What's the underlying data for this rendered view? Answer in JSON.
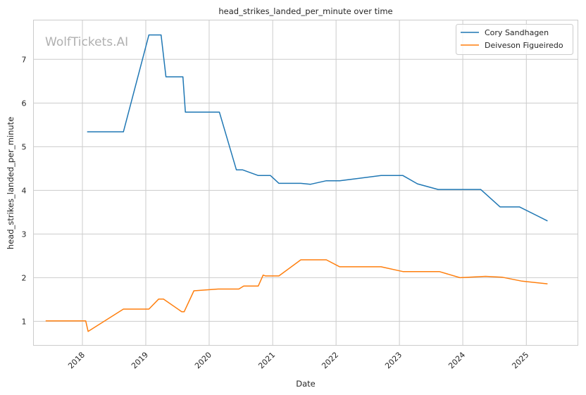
{
  "chart_data": {
    "type": "line",
    "title": "head_strikes_landed_per_minute over time",
    "xlabel": "Date",
    "ylabel": "head_strikes_landed_per_minute",
    "watermark": "WolfTickets.AI",
    "xlim": [
      "2017-03-25",
      "2025-10-25"
    ],
    "ylim": [
      0.45,
      7.9
    ],
    "xticks": [
      {
        "date": "2018-01-01",
        "label": "2018"
      },
      {
        "date": "2019-01-01",
        "label": "2019"
      },
      {
        "date": "2020-01-01",
        "label": "2020"
      },
      {
        "date": "2021-01-01",
        "label": "2021"
      },
      {
        "date": "2022-01-01",
        "label": "2022"
      },
      {
        "date": "2023-01-01",
        "label": "2023"
      },
      {
        "date": "2024-01-01",
        "label": "2024"
      },
      {
        "date": "2025-01-01",
        "label": "2025"
      }
    ],
    "yticks": [
      1,
      2,
      3,
      4,
      5,
      6,
      7
    ],
    "grid": true,
    "legend_position": "top-right",
    "series": [
      {
        "name": "Cory Sandhagen",
        "color": "#1f77b4",
        "points": [
          [
            "2018-01-28",
            5.34
          ],
          [
            "2018-08-25",
            5.34
          ],
          [
            "2019-01-19",
            7.56
          ],
          [
            "2019-03-30",
            7.56
          ],
          [
            "2019-04-27",
            6.6
          ],
          [
            "2019-08-03",
            6.6
          ],
          [
            "2019-08-17",
            5.79
          ],
          [
            "2020-02-29",
            5.79
          ],
          [
            "2020-06-06",
            4.47
          ],
          [
            "2020-07-11",
            4.47
          ],
          [
            "2020-10-10",
            4.34
          ],
          [
            "2020-12-19",
            4.34
          ],
          [
            "2021-02-06",
            4.16
          ],
          [
            "2021-06-12",
            4.16
          ],
          [
            "2021-08-07",
            4.14
          ],
          [
            "2021-11-06",
            4.22
          ],
          [
            "2022-01-22",
            4.22
          ],
          [
            "2022-09-17",
            4.34
          ],
          [
            "2023-01-21",
            4.34
          ],
          [
            "2023-04-15",
            4.15
          ],
          [
            "2023-08-12",
            4.02
          ],
          [
            "2024-04-13",
            4.02
          ],
          [
            "2024-08-03",
            3.62
          ],
          [
            "2024-11-23",
            3.62
          ],
          [
            "2025-05-03",
            3.3
          ]
        ]
      },
      {
        "name": "Deiveson Figueiredo",
        "color": "#ff7f0e",
        "points": [
          [
            "2017-06-03",
            1.01
          ],
          [
            "2018-01-20",
            1.01
          ],
          [
            "2018-02-03",
            0.77
          ],
          [
            "2018-08-25",
            1.28
          ],
          [
            "2019-01-19",
            1.28
          ],
          [
            "2019-03-16",
            1.51
          ],
          [
            "2019-04-13",
            1.51
          ],
          [
            "2019-07-27",
            1.22
          ],
          [
            "2019-08-10",
            1.22
          ],
          [
            "2019-10-05",
            1.7
          ],
          [
            "2020-02-22",
            1.74
          ],
          [
            "2020-06-20",
            1.74
          ],
          [
            "2020-07-18",
            1.81
          ],
          [
            "2020-10-10",
            1.81
          ],
          [
            "2020-11-07",
            2.06
          ],
          [
            "2020-11-21",
            2.04
          ],
          [
            "2021-02-06",
            2.04
          ],
          [
            "2021-06-12",
            2.41
          ],
          [
            "2021-11-06",
            2.41
          ],
          [
            "2022-01-22",
            2.25
          ],
          [
            "2022-09-17",
            2.25
          ],
          [
            "2023-01-21",
            2.14
          ],
          [
            "2023-08-19",
            2.14
          ],
          [
            "2023-12-16",
            2.0
          ],
          [
            "2024-05-11",
            2.03
          ],
          [
            "2024-08-17",
            2.01
          ],
          [
            "2024-12-07",
            1.92
          ],
          [
            "2025-05-03",
            1.86
          ]
        ]
      }
    ]
  }
}
